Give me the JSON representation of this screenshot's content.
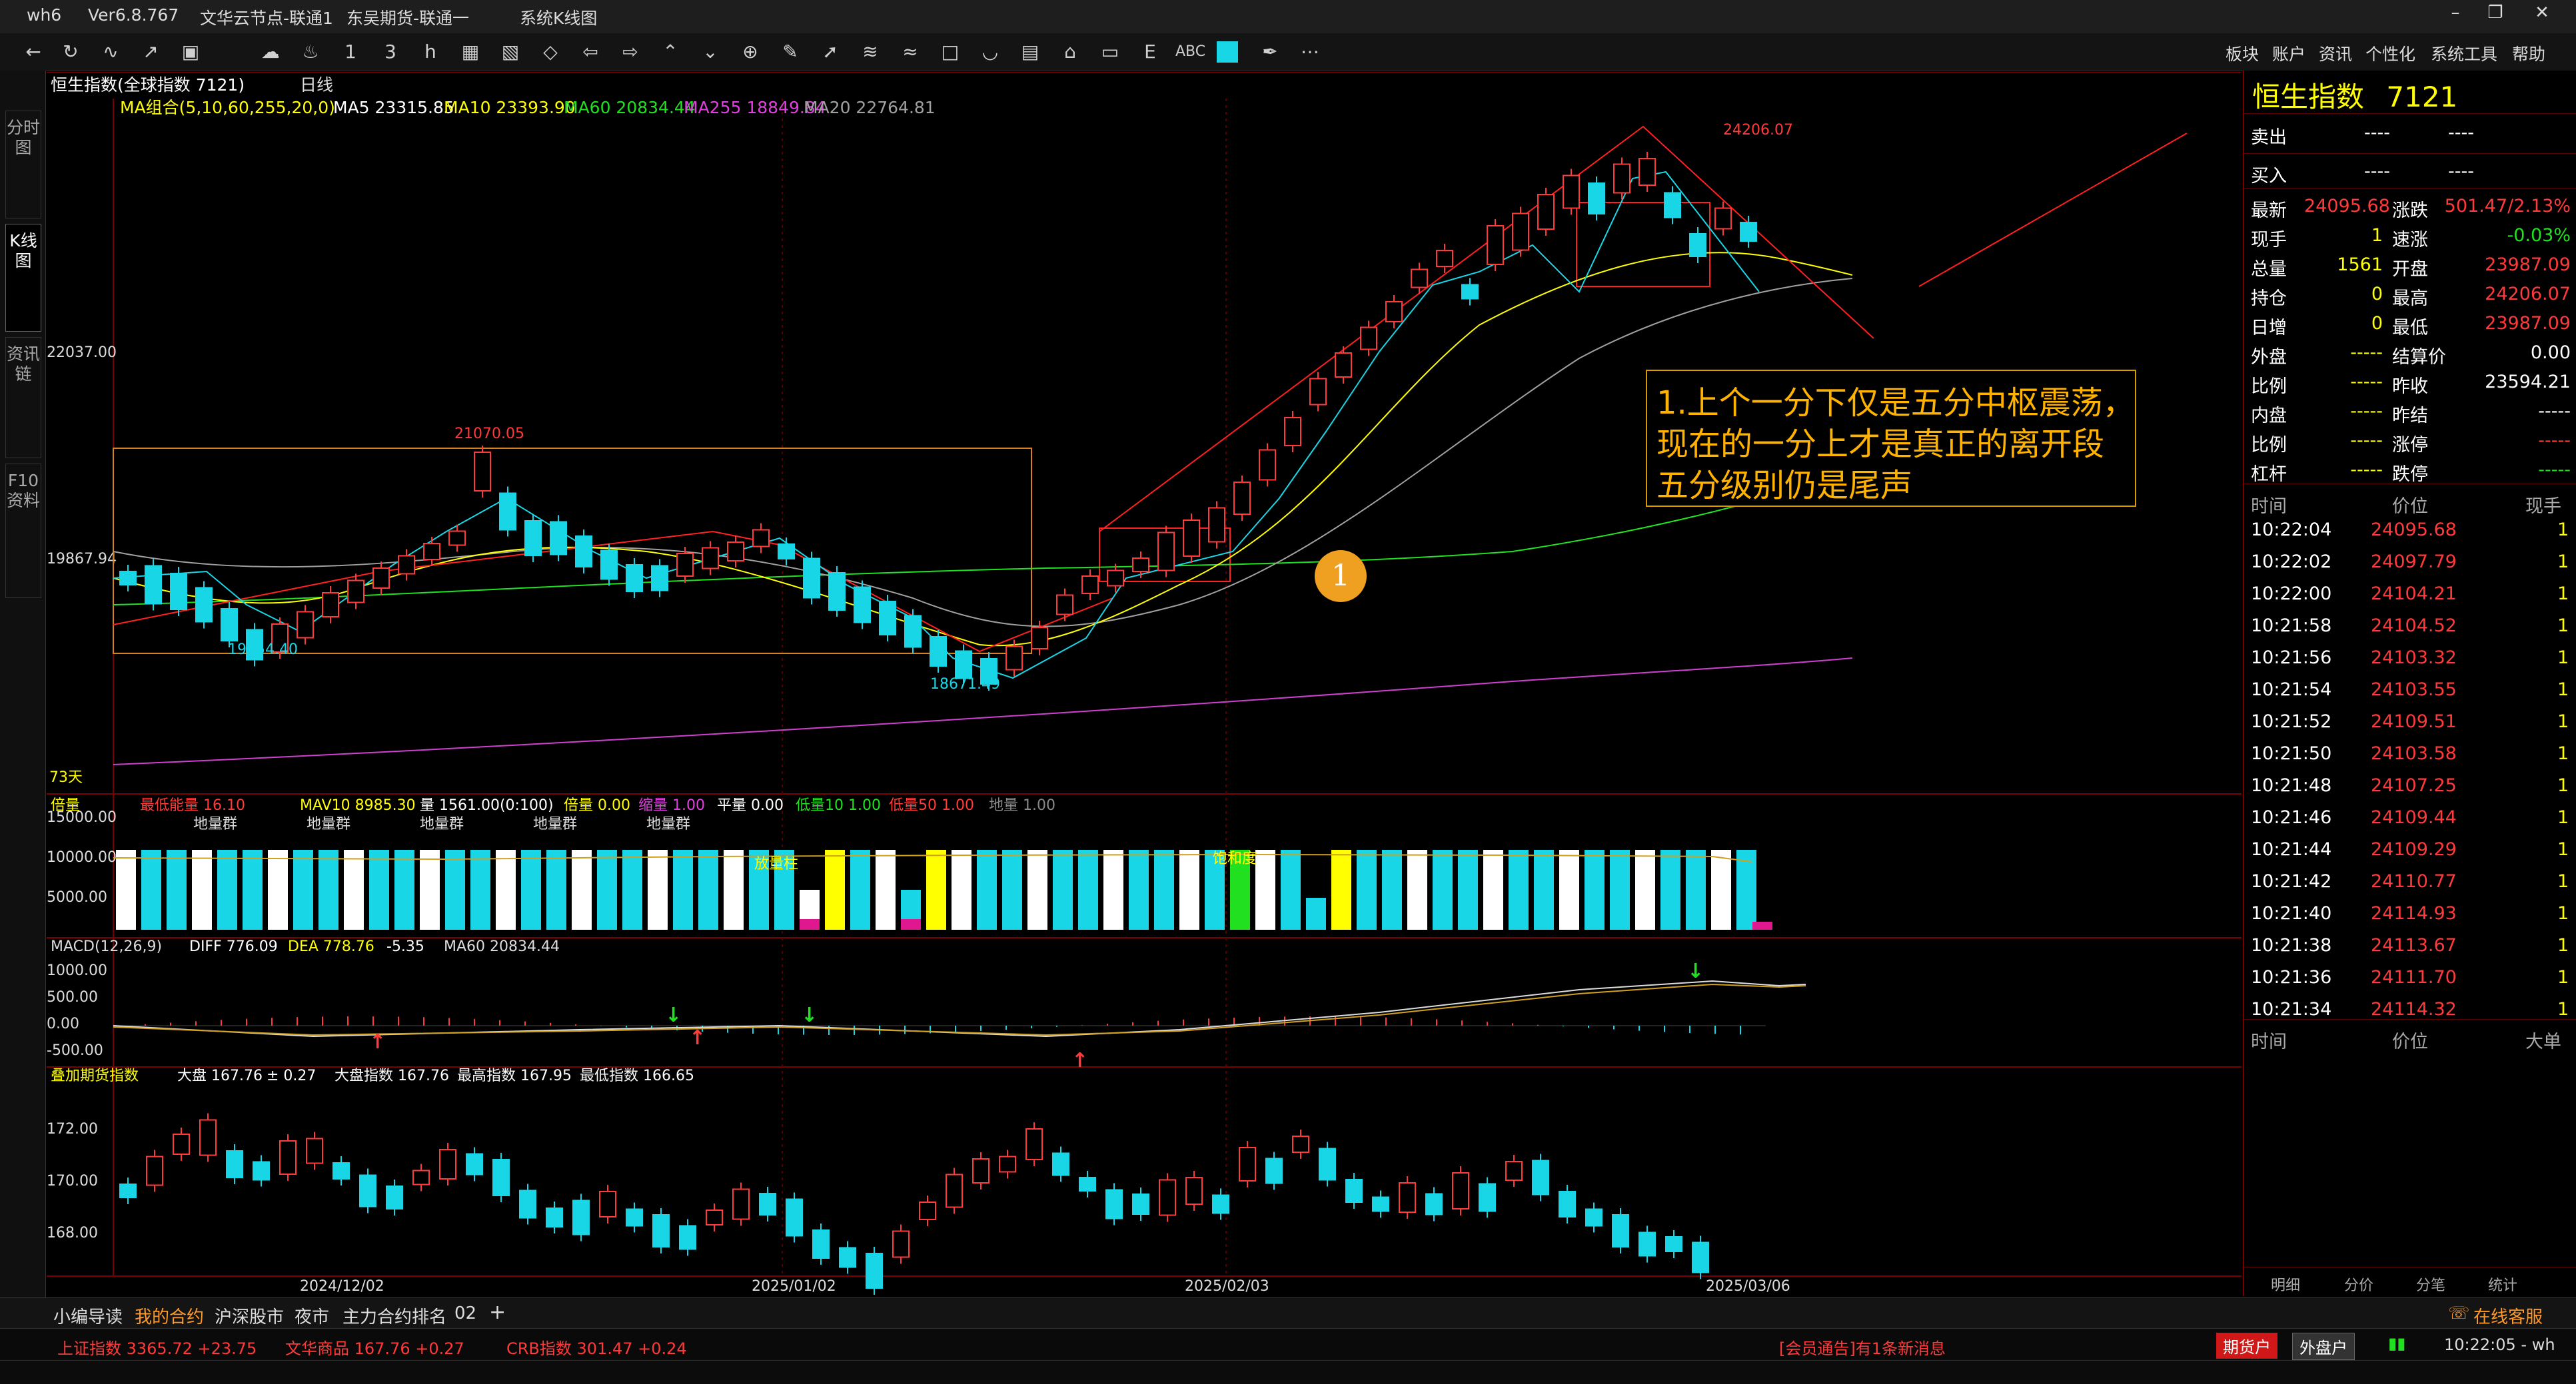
{
  "window": {
    "app": "wh6",
    "version": "Ver6.8.767",
    "node1": "文华云节点-联通1",
    "node2": "东吴期货-联通一",
    "page": "系统K线图",
    "menu": [
      "板块",
      "账户",
      "资讯",
      "个性化",
      "系统工具",
      "帮助"
    ]
  },
  "toolbar": {
    "selected_icon": "rectangle-tool",
    "abc_label": "ABC",
    "icons": [
      "back-icon",
      "refresh-icon",
      "line-chart-icon",
      "trend-icon",
      "cloud-icon",
      "bell-icon",
      "period-1-icon",
      "period-3-icon",
      "period-1h-icon",
      "season-icon",
      "year-icon",
      "diamond-icon",
      "arrow-left-icon",
      "arrow-right-icon",
      "up-chevron-icon",
      "down-chevron-icon",
      "crosshair-icon",
      "wave-icon",
      "rectangle-icon",
      "arc-icon",
      "grid-icon",
      "home-icon",
      "layout-icon",
      "text-e-icon",
      "abc-text-icon",
      "color-square-icon",
      "brush-icon",
      "more-icon"
    ]
  },
  "sidetabs": [
    "分时图",
    "K线图",
    "资讯链",
    "F10资料"
  ],
  "chart_header": {
    "symbol": "恒生指数(全球指数 7121)",
    "period": "日线",
    "ma_group": "MA组合(5,10,60,255,20,0)",
    "ma5": "MA5 23315.85",
    "ma10": "MA10 23393.90",
    "ma60": "MA60 20834.44",
    "ma255": "MA255 18849.84",
    "ma20": "MA20 22764.81"
  },
  "price_axis": [
    "22037.00",
    "19867.94"
  ],
  "price_labels": {
    "high_last": "24206.07",
    "peak_left": "21070.05",
    "low_left": "19054.40",
    "low_mid": "18671.49"
  },
  "days_label": "73天",
  "volume_header": {
    "toggle": "倍量",
    "max_accum": "最低能量 16.10",
    "mav10": "MAV10 8985.30",
    "vol": "量 1561.00(0:100)",
    "beiliang": "倍量 0.00",
    "suoliang": "缩量 1.00",
    "pingliang": "平量 0.00",
    "low10": "低量10 1.00",
    "low50": "低量50 1.00",
    "diliang": "地量 1.00",
    "groups": [
      "地量群",
      "地量群",
      "地量群",
      "地量群",
      "地量群"
    ],
    "tags": [
      "放量柱",
      "饱和度"
    ]
  },
  "volume_axis": [
    "15000.00",
    "10000.00",
    "5000.00"
  ],
  "macd_header": {
    "name": "MACD(12,26,9)",
    "diff": "DIFF 776.09",
    "dea": "DEA 778.76",
    "macd": "-5.35",
    "ma60": "MA60 20834.44"
  },
  "macd_axis": [
    "1000.00",
    "500.00",
    "0.00",
    "-500.00"
  ],
  "futures_header": {
    "name": "叠加期货指数",
    "dapan": "大盘 167.76",
    "change": "± 0.27",
    "dapan_index": "大盘指数 167.76",
    "highest": "最高指数 167.95",
    "lowest": "最低指数 166.65"
  },
  "futures_axis": [
    "172.00",
    "170.00",
    "168.00"
  ],
  "date_axis": [
    "2024/12/02",
    "2025/01/02",
    "2025/02/03",
    "2025/03/06"
  ],
  "annotation": {
    "line1": "1.上个一分下仅是五分中枢震荡，",
    "line2": "现在的一分上才是真正的离开段",
    "line3": "五分级别仍是尾声",
    "badge": "1"
  },
  "quote": {
    "title": "恒生指数",
    "code": "7121",
    "sell_label": "卖出",
    "sell_p": "----",
    "sell_v": "----",
    "buy_label": "买入",
    "buy_p": "----",
    "buy_v": "----",
    "rows": [
      {
        "l1": "最新",
        "v1": "24095.68",
        "c1": "#ff3a3a",
        "l2": "涨跌",
        "v2": "501.47/2.13%",
        "c2": "#ff3a3a"
      },
      {
        "l1": "现手",
        "v1": "1",
        "c1": "#ffff00",
        "l2": "速涨",
        "v2": "-0.03%",
        "c2": "#20e020"
      },
      {
        "l1": "总量",
        "v1": "1561",
        "c1": "#ffff00",
        "l2": "开盘",
        "v2": "23987.09",
        "c2": "#ff3a3a"
      },
      {
        "l1": "持仓",
        "v1": "0",
        "c1": "#ffff00",
        "l2": "最高",
        "v2": "24206.07",
        "c2": "#ff3a3a"
      },
      {
        "l1": "日增",
        "v1": "0",
        "c1": "#ffff00",
        "l2": "最低",
        "v2": "23987.09",
        "c2": "#ff3a3a"
      },
      {
        "l1": "外盘",
        "v1": "-----",
        "c1": "#ffff00",
        "l2": "结算价",
        "v2": "0.00",
        "c2": "#ffffff"
      },
      {
        "l1": "比例",
        "v1": "-----",
        "c1": "#ffff00",
        "l2": "昨收",
        "v2": "23594.21",
        "c2": "#ffffff"
      },
      {
        "l1": "内盘",
        "v1": "-----",
        "c1": "#ffff00",
        "l2": "昨结",
        "v2": "-----",
        "c2": "#ffffff"
      },
      {
        "l1": "比例",
        "v1": "-----",
        "c1": "#ffff00",
        "l2": "涨停",
        "v2": "-----",
        "c2": "#ff3a3a"
      },
      {
        "l1": "杠杆",
        "v1": "-----",
        "c1": "#ffff00",
        "l2": "跌停",
        "v2": "-----",
        "c2": "#20e020"
      }
    ],
    "tick_header": [
      "时间",
      "价位",
      "现手"
    ],
    "ticks": [
      {
        "t": "10:22:04",
        "p": "24095.68",
        "v": "1"
      },
      {
        "t": "10:22:02",
        "p": "24097.79",
        "v": "1"
      },
      {
        "t": "10:22:00",
        "p": "24104.21",
        "v": "1"
      },
      {
        "t": "10:21:58",
        "p": "24104.52",
        "v": "1"
      },
      {
        "t": "10:21:56",
        "p": "24103.32",
        "v": "1"
      },
      {
        "t": "10:21:54",
        "p": "24103.55",
        "v": "1"
      },
      {
        "t": "10:21:52",
        "p": "24109.51",
        "v": "1"
      },
      {
        "t": "10:21:50",
        "p": "24103.58",
        "v": "1"
      },
      {
        "t": "10:21:48",
        "p": "24107.25",
        "v": "1"
      },
      {
        "t": "10:21:46",
        "p": "24109.44",
        "v": "1"
      },
      {
        "t": "10:21:44",
        "p": "24109.29",
        "v": "1"
      },
      {
        "t": "10:21:42",
        "p": "24110.77",
        "v": "1"
      },
      {
        "t": "10:21:40",
        "p": "24114.93",
        "v": "1"
      },
      {
        "t": "10:21:38",
        "p": "24113.67",
        "v": "1"
      },
      {
        "t": "10:21:36",
        "p": "24111.70",
        "v": "1"
      },
      {
        "t": "10:21:34",
        "p": "24114.32",
        "v": "1"
      }
    ],
    "big_header": [
      "时间",
      "价位",
      "大单"
    ],
    "bottom_tabs": [
      "明细",
      "分价",
      "分笔",
      "统计"
    ]
  },
  "bottom_tabs": [
    "小编导读",
    "我的合约",
    "沪深股市",
    "夜市",
    "主力合约排名",
    "02",
    "+"
  ],
  "online_service": "在线客服",
  "status": {
    "sh": "上证指数 3365.72 +23.75",
    "wh": "文华商品 167.76 +0.27",
    "crb": "CRB指数 301.47 +0.24",
    "notice": "[会员通告]有1条新消息",
    "futures_btn": "期货户",
    "external_btn": "外盘户",
    "clock": "10:22:05 - wh"
  },
  "colors": {
    "up": "#ff3a3a",
    "down": "#19d6e6",
    "ma5": "#ffffff",
    "ma10": "#ffff00",
    "ma60": "#20e020",
    "ma255": "#d040d0",
    "ma20": "#a0a0a0",
    "frame": "#7a0000"
  }
}
